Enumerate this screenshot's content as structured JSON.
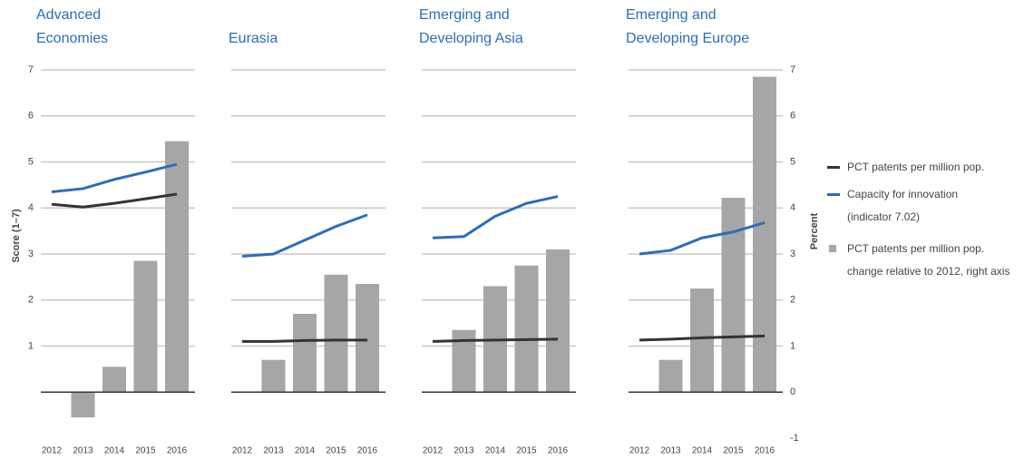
{
  "chart_data": [
    {
      "type": "bar",
      "title": "Advanced Economies",
      "categories": [
        "2012",
        "2013",
        "2014",
        "2015",
        "2016"
      ],
      "ylabel": "Score (1–7)",
      "ylim": [
        -1,
        7
      ],
      "yticks": [
        1,
        2,
        3,
        4,
        5,
        6,
        7
      ],
      "grid": true,
      "series": [
        {
          "name": "PCT patents per million pop. change relative to 2012, right axis",
          "type": "bar",
          "axis": "y2",
          "color": "#a6a6a6",
          "values": [
            0,
            -0.55,
            0.55,
            2.85,
            5.45
          ]
        },
        {
          "name": "PCT patents per million pop.",
          "type": "line",
          "axis": "y",
          "color": "#333333",
          "values": [
            4.08,
            4.02,
            4.1,
            4.2,
            4.3
          ]
        },
        {
          "name": "Capacity for innovation (indicator 7.02)",
          "type": "line",
          "axis": "y",
          "color": "#2f6db5",
          "values": [
            4.35,
            4.42,
            4.62,
            4.78,
            4.95
          ]
        }
      ]
    },
    {
      "type": "bar",
      "title": "Eurasia",
      "categories": [
        "2012",
        "2013",
        "2014",
        "2015",
        "2016"
      ],
      "series": [
        {
          "name": "PCT patents per million pop. change relative to 2012, right axis",
          "type": "bar",
          "axis": "y2",
          "color": "#a6a6a6",
          "values": [
            0,
            0.7,
            1.7,
            2.55,
            2.35
          ]
        },
        {
          "name": "PCT patents per million pop.",
          "type": "line",
          "axis": "y",
          "color": "#333333",
          "values": [
            1.1,
            1.1,
            1.12,
            1.13,
            1.13
          ]
        },
        {
          "name": "Capacity for innovation (indicator 7.02)",
          "type": "line",
          "axis": "y",
          "color": "#2f6db5",
          "values": [
            2.95,
            3.0,
            3.3,
            3.6,
            3.85
          ]
        }
      ]
    },
    {
      "type": "bar",
      "title": "Emerging and Developing Asia",
      "categories": [
        "2012",
        "2013",
        "2014",
        "2015",
        "2016"
      ],
      "series": [
        {
          "name": "PCT patents per million pop. change relative to 2012, right axis",
          "type": "bar",
          "axis": "y2",
          "color": "#a6a6a6",
          "values": [
            0,
            1.35,
            2.3,
            2.75,
            3.1
          ]
        },
        {
          "name": "PCT patents per million pop.",
          "type": "line",
          "axis": "y",
          "color": "#333333",
          "values": [
            1.1,
            1.12,
            1.13,
            1.14,
            1.15
          ]
        },
        {
          "name": "Capacity for innovation (indicator 7.02)",
          "type": "line",
          "axis": "y",
          "color": "#2f6db5",
          "values": [
            3.35,
            3.38,
            3.82,
            4.1,
            4.25
          ]
        }
      ]
    },
    {
      "type": "bar",
      "title": "Emerging and Developing Europe",
      "categories": [
        "2012",
        "2013",
        "2014",
        "2015",
        "2016"
      ],
      "y2label": "Percent",
      "y2lim": [
        -1,
        7
      ],
      "y2ticks": [
        -1,
        0,
        1,
        2,
        3,
        4,
        5,
        6,
        7
      ],
      "series": [
        {
          "name": "PCT patents per million pop. change relative to 2012, right axis",
          "type": "bar",
          "axis": "y2",
          "color": "#a6a6a6",
          "values": [
            0,
            0.7,
            2.25,
            4.22,
            6.85
          ]
        },
        {
          "name": "PCT patents per million pop.",
          "type": "line",
          "axis": "y",
          "color": "#333333",
          "values": [
            1.13,
            1.15,
            1.18,
            1.2,
            1.22
          ]
        },
        {
          "name": "Capacity for innovation (indicator 7.02)",
          "type": "line",
          "axis": "y",
          "color": "#2f6db5",
          "values": [
            3.0,
            3.08,
            3.35,
            3.48,
            3.68
          ]
        }
      ]
    }
  ]
}
